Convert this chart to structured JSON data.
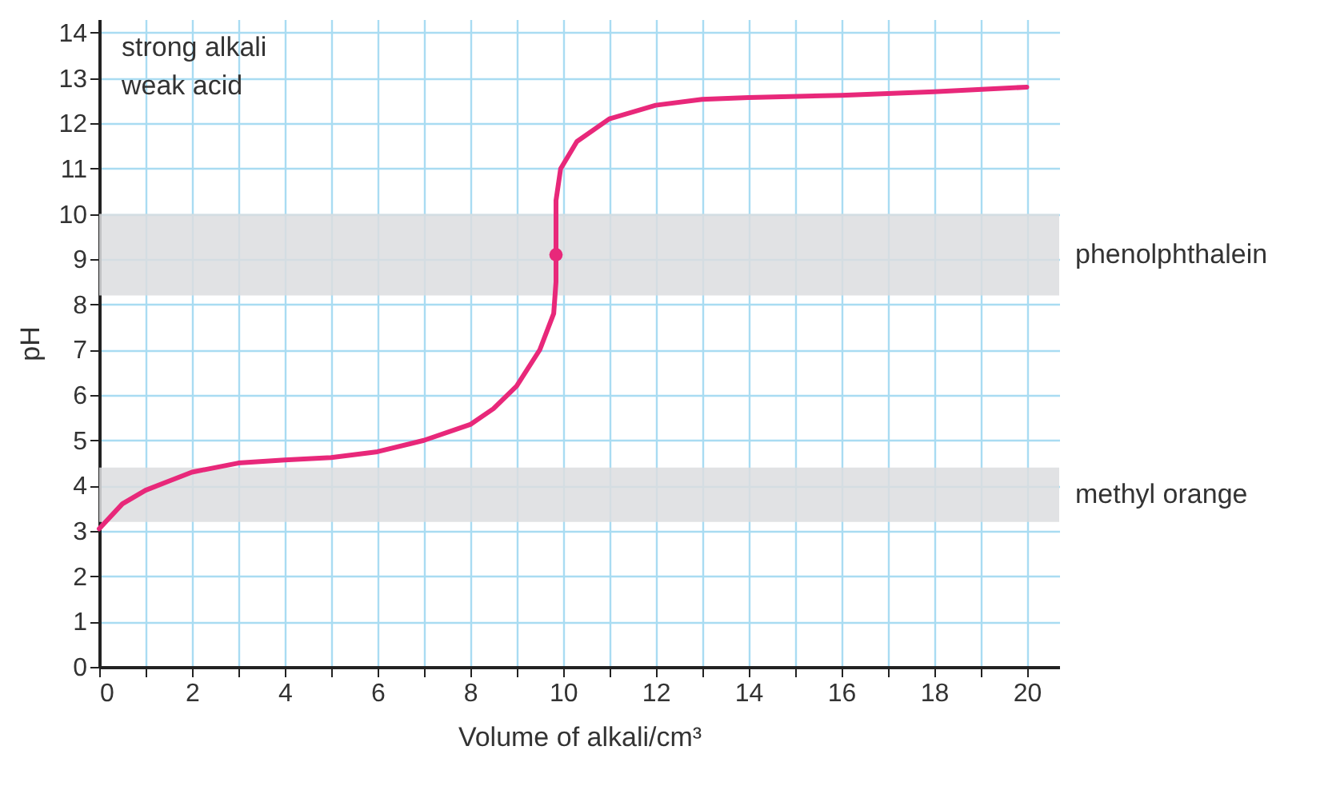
{
  "chart_data": {
    "type": "line",
    "xlabel": "Volume of alkali/cm³",
    "ylabel": "pH",
    "annotations": [
      "strong alkali",
      "weak acid"
    ],
    "xlim": [
      0,
      20.7
    ],
    "ylim": [
      0,
      14.3
    ],
    "xticks": [
      0,
      {
        "value": 1,
        "label": null
      },
      2,
      {
        "value": 3,
        "label": null
      },
      4,
      {
        "value": 5,
        "label": null
      },
      6,
      {
        "value": 7,
        "label": null
      },
      8,
      {
        "value": 9,
        "label": null
      },
      10,
      {
        "value": 11,
        "label": null
      },
      12,
      {
        "value": 13,
        "label": null
      },
      14,
      {
        "value": 15,
        "label": null
      },
      16,
      {
        "value": 17,
        "label": null
      },
      18,
      {
        "value": 19,
        "label": null
      },
      20
    ],
    "yticks": [
      0,
      1,
      2,
      3,
      4,
      5,
      6,
      7,
      8,
      9,
      10,
      11,
      12,
      13,
      14
    ],
    "grid": true,
    "bands": [
      {
        "axis": "y",
        "from": 8.2,
        "to": 10,
        "label": "phenolphthalein",
        "color": "#dcdddf"
      },
      {
        "axis": "y",
        "from": 3.2,
        "to": 4.4,
        "label": "methyl orange",
        "color": "#dcdddf"
      }
    ],
    "series": [
      {
        "type": "line",
        "color": "#e8287a",
        "marker": "none",
        "line_style": "solid",
        "x": [
          0,
          0.5,
          1,
          1.5,
          2,
          3,
          4,
          5,
          6,
          7,
          8,
          8.5,
          9,
          9.5,
          9.8,
          9.85,
          9.85,
          9.85,
          9.95,
          10.3,
          11,
          12,
          13,
          14,
          16,
          18,
          20
        ],
        "values": [
          3.05,
          3.6,
          3.9,
          4.1,
          4.3,
          4.5,
          4.57,
          4.62,
          4.75,
          5.0,
          5.35,
          5.7,
          6.2,
          7.0,
          7.8,
          8.5,
          9.1,
          10.3,
          11.0,
          11.6,
          12.1,
          12.4,
          12.53,
          12.57,
          12.62,
          12.7,
          12.8
        ]
      },
      {
        "type": "scatter",
        "color": "#e8287a",
        "marker": "circle",
        "x": [
          9.85
        ],
        "values": [
          9.1
        ]
      }
    ]
  }
}
